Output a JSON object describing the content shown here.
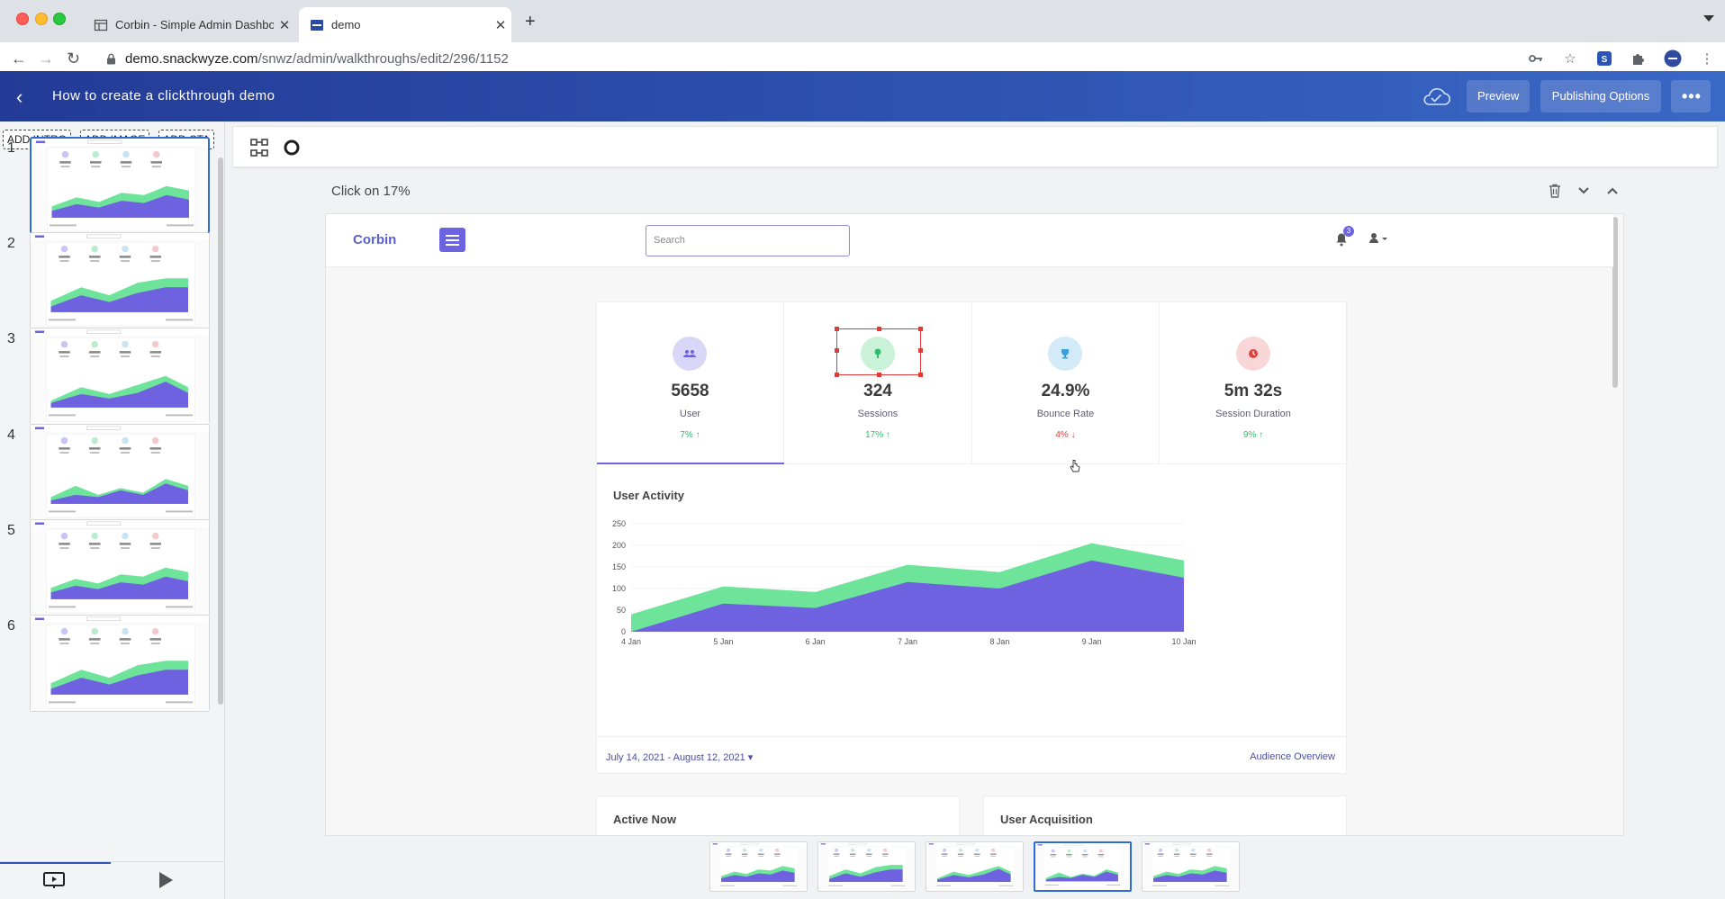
{
  "browser": {
    "tabs": [
      {
        "title": "Corbin - Simple Admin Dashbo",
        "active": false
      },
      {
        "title": "demo",
        "active": true
      }
    ],
    "url_host": "demo.snackwyze.com",
    "url_path": "/snwz/admin/walkthroughs/edit2/296/1152"
  },
  "app": {
    "title": "How to create a clickthrough demo",
    "preview_label": "Preview",
    "publishing_label": "Publishing Options",
    "more_label": "•••"
  },
  "left_panel": {
    "add_intro": "ADD INTRO",
    "add_image": "ADD IMAGE",
    "add_cta": "ADD CTA",
    "slides": [
      {
        "number": "1"
      },
      {
        "number": "2"
      },
      {
        "number": "3"
      },
      {
        "number": "4"
      },
      {
        "number": "5"
      },
      {
        "number": "6"
      }
    ],
    "selected_slide": 1
  },
  "step": {
    "title": "Click on 17%"
  },
  "corbin": {
    "logo": "Corbin",
    "search_placeholder": "Search",
    "notification_count": "3",
    "stats": [
      {
        "value": "5658",
        "label": "User",
        "change": "7%",
        "direction": "up",
        "icon": "users-icon",
        "color": "#d9d6f7"
      },
      {
        "value": "324",
        "label": "Sessions",
        "change": "17%",
        "direction": "up",
        "icon": "sessions-icon",
        "color": "#c9f2d9"
      },
      {
        "value": "24.9%",
        "label": "Bounce Rate",
        "change": "4%",
        "direction": "down",
        "icon": "trophy-icon",
        "color": "#d3eaf8"
      },
      {
        "value": "5m 32s",
        "label": "Session Duration",
        "change": "9%",
        "direction": "up",
        "icon": "clock-icon",
        "color": "#f9d7d9"
      }
    ],
    "activity_title": "User Activity",
    "date_range": "July 14, 2021 - August 12, 2021",
    "audience_link": "Audience Overview",
    "active_now_title": "Active Now",
    "user_acquisition_title": "User Acquisition"
  },
  "chart_data": {
    "type": "area",
    "title": "User Activity",
    "x": [
      "4 Jan",
      "5 Jan",
      "6 Jan",
      "7 Jan",
      "8 Jan",
      "9 Jan",
      "10 Jan"
    ],
    "ylim": [
      0,
      250
    ],
    "yticks": [
      0,
      50,
      100,
      150,
      200,
      250
    ],
    "series": [
      {
        "values": [
          0,
          65,
          55,
          115,
          100,
          165,
          125
        ],
        "color": "#6f62e0"
      },
      {
        "values": [
          40,
          105,
          92,
          155,
          138,
          205,
          165
        ],
        "color": "#6ee39a"
      }
    ],
    "grid": true
  },
  "colors": {
    "accent": "#6c63e0",
    "header": "#2f55b3",
    "up": "#2ebd6b",
    "down": "#e0433d"
  }
}
